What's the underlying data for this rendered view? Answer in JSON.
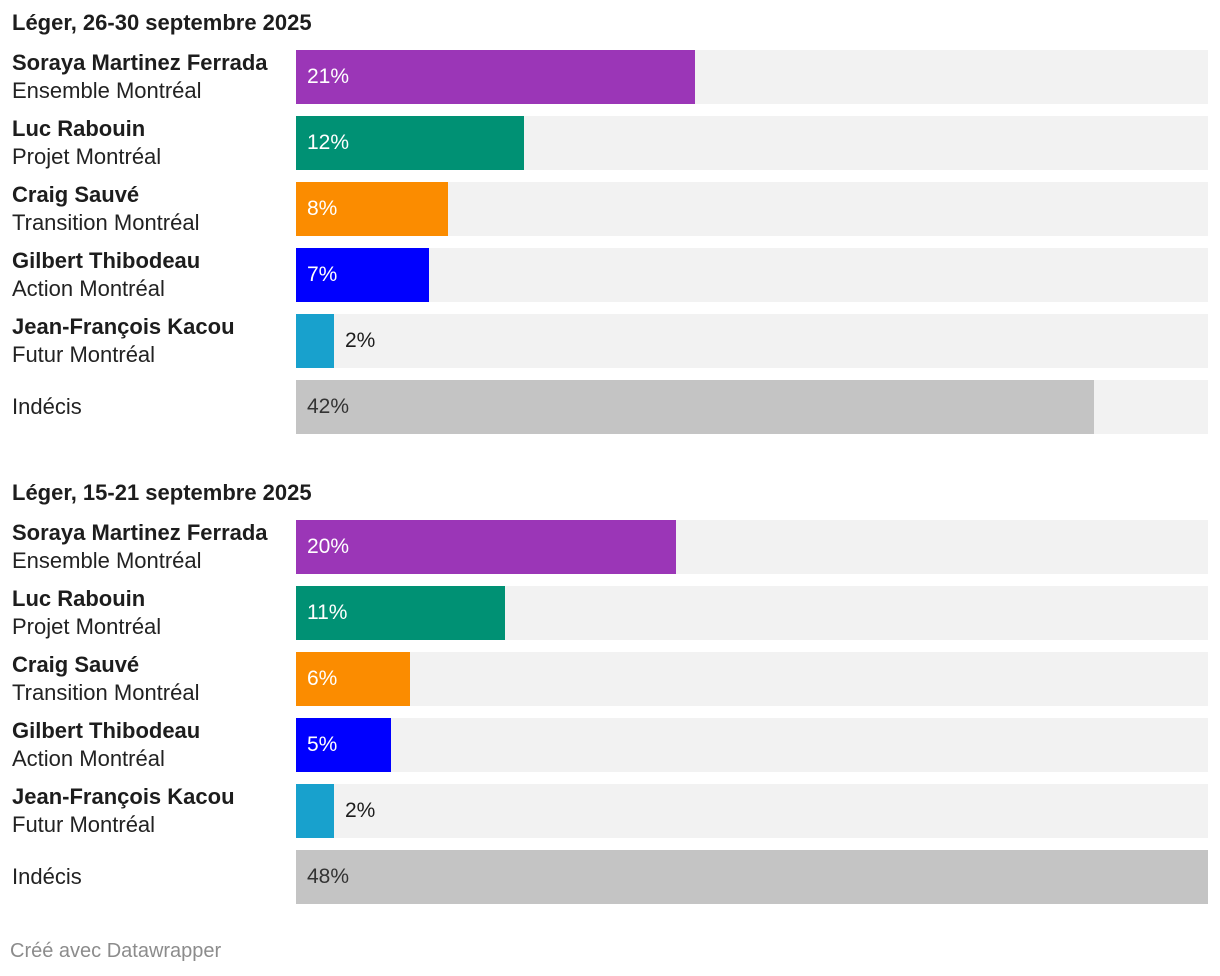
{
  "chart_data": [
    {
      "type": "bar",
      "orientation": "horizontal",
      "title": "Léger, 26-30 septembre 2025",
      "xlim": [
        0,
        48
      ],
      "rows": [
        {
          "name": "Soraya Martinez Ferrada",
          "party": "Ensemble Montréal",
          "value": 21,
          "label": "21%",
          "color": "#9b36b7",
          "label_color": "#ffffff"
        },
        {
          "name": "Luc Rabouin",
          "party": "Projet Montréal",
          "value": 12,
          "label": "12%",
          "color": "#009174",
          "label_color": "#ffffff"
        },
        {
          "name": "Craig Sauvé",
          "party": "Transition Montréal",
          "value": 8,
          "label": "8%",
          "color": "#fb8c00",
          "label_color": "#ffffff"
        },
        {
          "name": "Gilbert Thibodeau",
          "party": "Action Montréal",
          "value": 7,
          "label": "7%",
          "color": "#0000ff",
          "label_color": "#ffffff"
        },
        {
          "name": "Jean-François Kacou",
          "party": "Futur Montréal",
          "value": 2,
          "label": "2%",
          "color": "#18a1cd",
          "label_color": "#1d1d1d"
        },
        {
          "name": "",
          "party": "Indécis",
          "value": 42,
          "label": "42%",
          "color": "#c4c4c4",
          "label_color": "#333333"
        }
      ]
    },
    {
      "type": "bar",
      "orientation": "horizontal",
      "title": "Léger, 15-21 septembre 2025",
      "xlim": [
        0,
        48
      ],
      "rows": [
        {
          "name": "Soraya Martinez Ferrada",
          "party": "Ensemble Montréal",
          "value": 20,
          "label": "20%",
          "color": "#9b36b7",
          "label_color": "#ffffff"
        },
        {
          "name": "Luc Rabouin",
          "party": "Projet Montréal",
          "value": 11,
          "label": "11%",
          "color": "#009174",
          "label_color": "#ffffff"
        },
        {
          "name": "Craig Sauvé",
          "party": "Transition Montréal",
          "value": 6,
          "label": "6%",
          "color": "#fb8c00",
          "label_color": "#ffffff"
        },
        {
          "name": "Gilbert Thibodeau",
          "party": "Action Montréal",
          "value": 5,
          "label": "5%",
          "color": "#0000ff",
          "label_color": "#ffffff"
        },
        {
          "name": "Jean-François Kacou",
          "party": "Futur Montréal",
          "value": 2,
          "label": "2%",
          "color": "#18a1cd",
          "label_color": "#1d1d1d"
        },
        {
          "name": "",
          "party": "Indécis",
          "value": 48,
          "label": "48%",
          "color": "#c4c4c4",
          "label_color": "#333333"
        }
      ]
    }
  ],
  "footer": "Créé avec Datawrapper"
}
